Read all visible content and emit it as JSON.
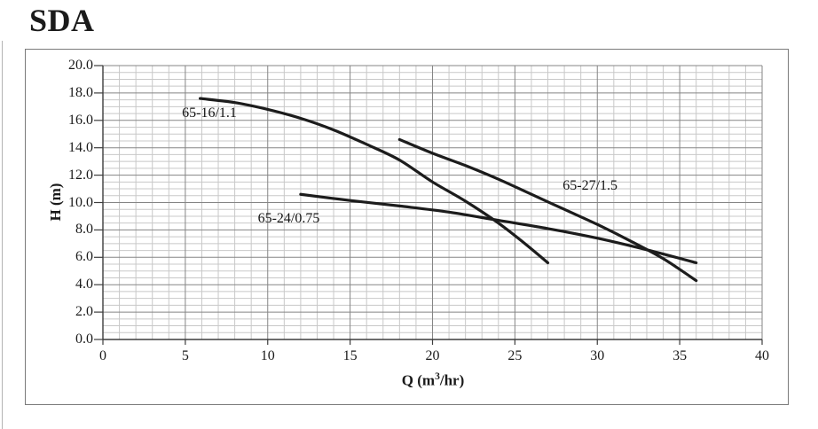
{
  "page": {
    "title": "SDA"
  },
  "chart_data": {
    "type": "line",
    "title": "SDA",
    "xlabel_prefix": "Q (m",
    "xlabel_sup": "3",
    "xlabel_suffix": "/hr)",
    "ylabel": "H (m)",
    "xlim": [
      0,
      40
    ],
    "ylim": [
      0,
      20
    ],
    "x_major_step": 5,
    "x_minor_step": 1,
    "y_major_step": 2,
    "y_minor_step": 0.5,
    "grid": true,
    "legend_position": "inline-curve-labels",
    "x_ticks": {
      "values": [
        0,
        5,
        10,
        15,
        20,
        25,
        30,
        35,
        40
      ],
      "labels": [
        "0",
        "5",
        "10",
        "15",
        "20",
        "25",
        "30",
        "35",
        "40"
      ]
    },
    "y_ticks": {
      "values": [
        0,
        2,
        4,
        6,
        8,
        10,
        12,
        14,
        16,
        18,
        20
      ],
      "labels": [
        "0.0",
        "2.0",
        "4.0",
        "6.0",
        "8.0",
        "10.0",
        "12.0",
        "14.0",
        "16.0",
        "18.0",
        "20.0"
      ]
    },
    "series": [
      {
        "name": "65-16/1.1",
        "label_anchor": {
          "q": 4.8,
          "h": 16.5
        },
        "points": [
          [
            5.9,
            17.6
          ],
          [
            8,
            17.3
          ],
          [
            10,
            16.8
          ],
          [
            12,
            16.15
          ],
          [
            14,
            15.3
          ],
          [
            16,
            14.25
          ],
          [
            18,
            13.1
          ],
          [
            20,
            11.5
          ],
          [
            22,
            10.1
          ],
          [
            24,
            8.5
          ],
          [
            25.5,
            7.1
          ],
          [
            27,
            5.6
          ]
        ]
      },
      {
        "name": "65-24/0.75",
        "label_anchor": {
          "q": 9.4,
          "h": 8.8
        },
        "points": [
          [
            12,
            10.6
          ],
          [
            15,
            10.15
          ],
          [
            18,
            9.75
          ],
          [
            21,
            9.3
          ],
          [
            24,
            8.7
          ],
          [
            27,
            8.1
          ],
          [
            30,
            7.4
          ],
          [
            33,
            6.55
          ],
          [
            36,
            5.6
          ]
        ]
      },
      {
        "name": "65-27/1.5",
        "label_anchor": {
          "q": 27.9,
          "h": 11.2
        },
        "points": [
          [
            18,
            14.6
          ],
          [
            20,
            13.6
          ],
          [
            22,
            12.7
          ],
          [
            24,
            11.7
          ],
          [
            26,
            10.6
          ],
          [
            28,
            9.5
          ],
          [
            30,
            8.4
          ],
          [
            32,
            7.2
          ],
          [
            34,
            5.9
          ],
          [
            36,
            4.3
          ]
        ]
      }
    ],
    "colors": {
      "curve": "#1c1c1c",
      "grid_minor": "#c8c8c8",
      "grid_major": "#858585",
      "axis": "#3d3d3d",
      "text": "#1a1a1a",
      "frame_border": "#7a7a7a",
      "background": "#ffffff"
    }
  }
}
